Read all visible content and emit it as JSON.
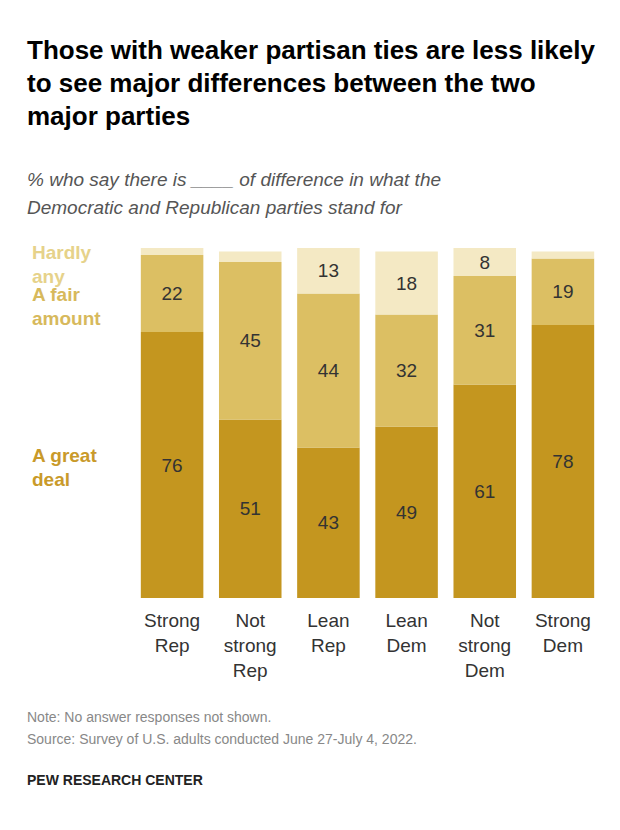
{
  "chart_data": {
    "type": "bar",
    "title": "Those with weaker partisan ties are less likely to see major differences between the two major parties",
    "subtitle": "% who say there is ____ of difference in what the Democratic and Republican parties stand for",
    "notes": [
      "Note: No answer responses not shown.",
      "Source: Survey of U.S. adults conducted June 27-July 4, 2022."
    ],
    "source_credit": "PEW RESEARCH CENTER",
    "categories": [
      "Strong Rep",
      "Not strong Rep",
      "Lean Rep",
      "Lean Dem",
      "Not strong Dem",
      "Strong Dem"
    ],
    "series": [
      {
        "name": "A great deal",
        "color": "#c4961f",
        "values": [
          76,
          51,
          43,
          49,
          61,
          78
        ]
      },
      {
        "name": "A fair amount",
        "color": "#dcbf63",
        "values": [
          22,
          45,
          44,
          32,
          31,
          19
        ]
      },
      {
        "name": "Hardly any",
        "color": "#f4e9c4",
        "values": [
          2,
          3,
          13,
          18,
          8,
          2
        ],
        "value_labels": [
          null,
          null,
          "13",
          "18",
          "8",
          null
        ]
      }
    ],
    "stacked": true,
    "data_labels": true,
    "grid": false,
    "tick_labels": "x",
    "ylim": [
      0,
      100
    ],
    "yticks": [
      0,
      100
    ]
  }
}
